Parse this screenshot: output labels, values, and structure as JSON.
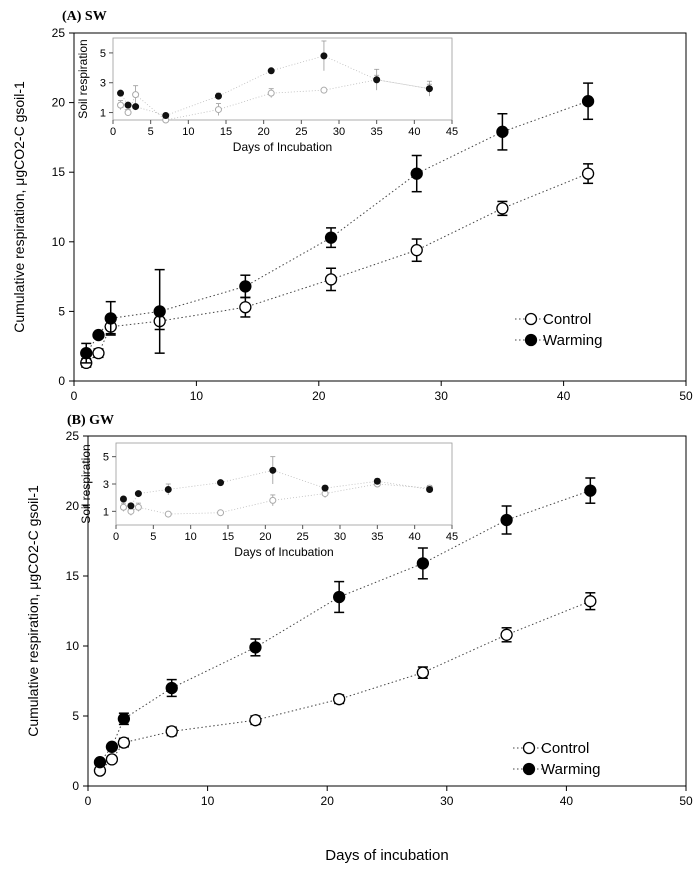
{
  "chart_data": [
    {
      "type": "scatter",
      "panel": "A",
      "title": "(A) SW",
      "xlabel": "",
      "ylabel": "Cumulative respiration, μgCO2-C gsoil-1",
      "xlim": [
        0,
        50
      ],
      "ylim": [
        0,
        25
      ],
      "xticks": [
        0,
        10,
        20,
        30,
        40,
        50
      ],
      "yticks": [
        0,
        5,
        10,
        15,
        20,
        25
      ],
      "legend": [
        "Control",
        "Warming"
      ],
      "legend_position": "lower-right",
      "series": [
        {
          "name": "Control",
          "marker": "open-circle",
          "x": [
            1,
            2,
            3,
            7,
            14,
            21,
            28,
            35,
            42
          ],
          "y": [
            1.3,
            2.0,
            3.9,
            4.3,
            5.3,
            7.3,
            9.4,
            12.4,
            14.9
          ],
          "err": [
            0.3,
            0.3,
            0.5,
            0.6,
            0.7,
            0.8,
            0.8,
            0.5,
            0.7
          ]
        },
        {
          "name": "Warming",
          "marker": "filled-circle",
          "x": [
            1,
            2,
            3,
            7,
            14,
            21,
            28,
            35,
            42
          ],
          "y": [
            2.0,
            3.3,
            4.5,
            5.0,
            6.8,
            10.3,
            14.9,
            17.9,
            20.1
          ],
          "err": [
            0.7,
            0.2,
            1.2,
            3.0,
            0.8,
            0.7,
            1.3,
            1.3,
            1.3
          ]
        }
      ],
      "inset": {
        "xlabel": "Days of Incubation",
        "ylabel": "Soil respiration",
        "xlim": [
          0,
          45
        ],
        "ylim": [
          0.5,
          6
        ],
        "xticks": [
          0,
          5,
          10,
          15,
          20,
          25,
          30,
          35,
          40,
          45
        ],
        "yticks": [
          1,
          3,
          5
        ],
        "series": [
          {
            "name": "Control",
            "x": [
              1,
              2,
              3,
              7,
              14,
              21,
              28,
              35,
              42
            ],
            "y": [
              1.5,
              1.0,
              2.2,
              0.5,
              1.2,
              2.3,
              2.5,
              3.2,
              2.6
            ],
            "err": [
              0.3,
              0.2,
              0.6,
              0.1,
              0.4,
              0.3,
              0.1,
              0.3,
              0.3
            ]
          },
          {
            "name": "Warming",
            "x": [
              1,
              2,
              3,
              7,
              14,
              21,
              28,
              35,
              42
            ],
            "y": [
              2.3,
              1.5,
              1.4,
              0.8,
              2.1,
              3.8,
              4.8,
              3.2,
              2.6
            ],
            "err": [
              0.1,
              0.1,
              0.1,
              0.1,
              0.2,
              0.1,
              1.0,
              0.7,
              0.5
            ]
          }
        ]
      }
    },
    {
      "type": "scatter",
      "panel": "B",
      "title": "(B) GW",
      "xlabel": "Days of incubation",
      "ylabel": "Cumulative respiration, μgCO2-C gsoil-1",
      "xlim": [
        0,
        50
      ],
      "ylim": [
        0,
        25
      ],
      "xticks": [
        0,
        10,
        20,
        30,
        40,
        50
      ],
      "yticks": [
        0,
        5,
        10,
        15,
        20,
        25
      ],
      "legend": [
        "Control",
        "Warming"
      ],
      "legend_position": "lower-right",
      "series": [
        {
          "name": "Control",
          "marker": "open-circle",
          "x": [
            1,
            2,
            3,
            7,
            14,
            21,
            28,
            35,
            42
          ],
          "y": [
            1.1,
            1.9,
            3.1,
            3.9,
            4.7,
            6.2,
            8.1,
            10.8,
            13.2
          ],
          "err": [
            0.2,
            0.2,
            0.3,
            0.3,
            0.3,
            0.3,
            0.4,
            0.5,
            0.6
          ]
        },
        {
          "name": "Warming",
          "marker": "filled-circle",
          "x": [
            1,
            2,
            3,
            7,
            14,
            21,
            28,
            35,
            42
          ],
          "y": [
            1.7,
            2.8,
            4.8,
            7.0,
            9.9,
            13.5,
            15.9,
            19.0,
            21.1
          ],
          "err": [
            0.2,
            0.2,
            0.4,
            0.6,
            0.6,
            1.1,
            1.1,
            1.0,
            0.9
          ]
        }
      ],
      "inset": {
        "xlabel": "Days of Incubation",
        "ylabel": "Soil respiration",
        "xlim": [
          0,
          45
        ],
        "ylim": [
          0,
          6
        ],
        "xticks": [
          0,
          5,
          10,
          15,
          20,
          25,
          30,
          35,
          40,
          45
        ],
        "yticks": [
          1,
          3,
          5
        ],
        "series": [
          {
            "name": "Control",
            "x": [
              1,
              2,
              3,
              7,
              14,
              21,
              28,
              35,
              42
            ],
            "y": [
              1.3,
              1.0,
              1.3,
              0.8,
              0.9,
              1.8,
              2.3,
              3.0,
              2.7
            ],
            "err": [
              0.3,
              0.3,
              0.3,
              0.1,
              0.1,
              0.4,
              0.3,
              0.2,
              0.2
            ]
          },
          {
            "name": "Warming",
            "x": [
              1,
              2,
              3,
              7,
              14,
              21,
              28,
              35,
              42
            ],
            "y": [
              1.9,
              1.4,
              2.3,
              2.6,
              3.1,
              4.0,
              2.7,
              3.2,
              2.6
            ],
            "err": [
              0.1,
              0.1,
              0.1,
              0.4,
              0.1,
              1.0,
              0.2,
              0.2,
              0.2
            ]
          }
        ]
      }
    }
  ]
}
